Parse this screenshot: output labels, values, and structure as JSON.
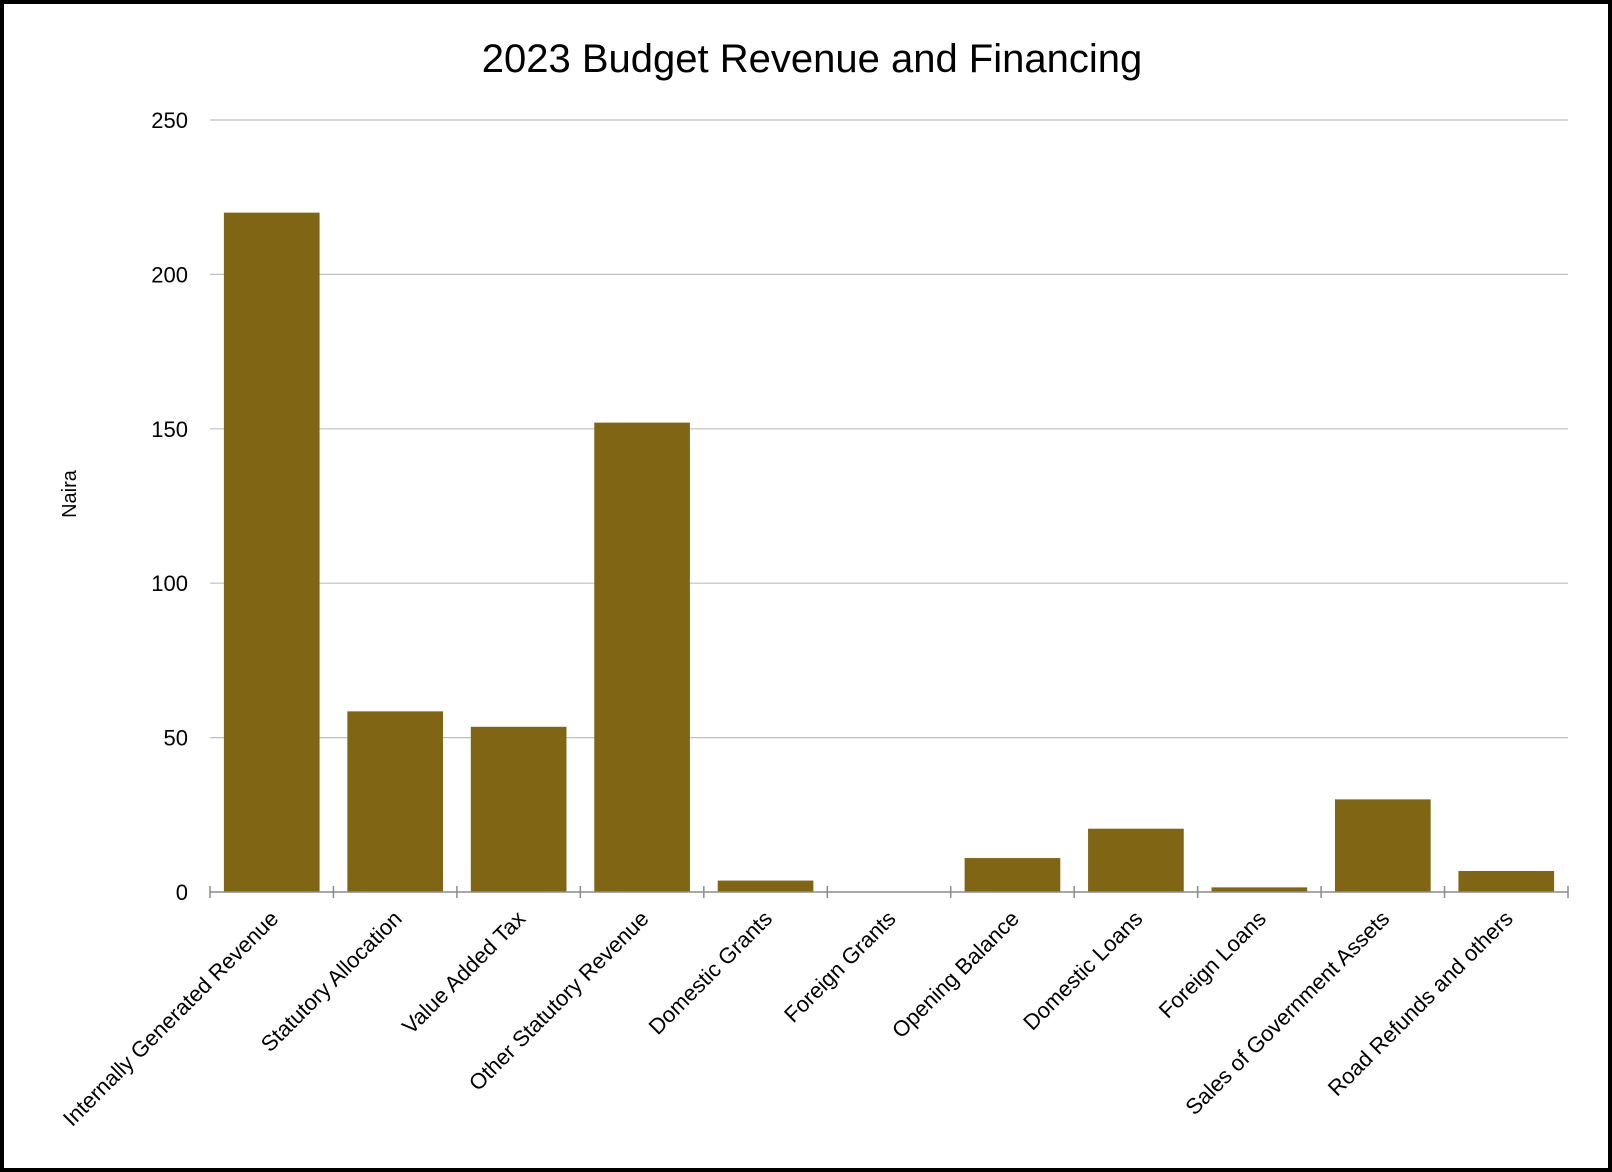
{
  "chart_data": {
    "type": "bar",
    "title": "2023 Budget Revenue and Financing",
    "xlabel": "",
    "ylabel": "Naira",
    "ylim": [
      0,
      250
    ],
    "yticks": [
      0,
      50,
      100,
      150,
      200,
      250
    ],
    "grid": true,
    "legend": "none",
    "bar_color": "#806614",
    "gridline_color": "#bfbfbf",
    "axis_color": "#8c8c8c",
    "categories": [
      "Internally Generated Revenue",
      "Statutory Allocation",
      "Value Added Tax",
      "Other Statutory Revenue",
      "Domestic Grants",
      "Foreign Grants",
      "Opening Balance",
      "Domestic Loans",
      "Foreign Loans",
      "Sales of Government Assets",
      "Road Refunds and others"
    ],
    "values": [
      220,
      58.5,
      53.5,
      152,
      3.7,
      0,
      11,
      20.5,
      1.5,
      30,
      6.8
    ]
  }
}
